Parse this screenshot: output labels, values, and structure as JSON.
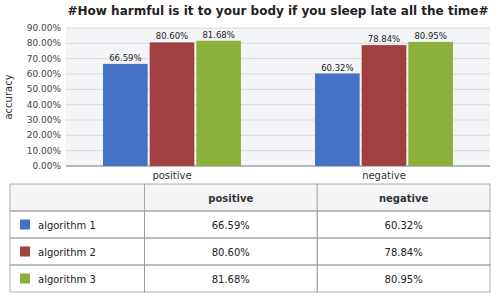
{
  "chart_data": {
    "type": "bar",
    "title": "#How harmful is it to your body if you sleep late all the time#",
    "ylabel": "accuracy",
    "categories": [
      "positive",
      "negative"
    ],
    "series": [
      {
        "name": "algorithm 1",
        "color": "#4472C4",
        "values": [
          66.59,
          60.32
        ],
        "value_labels": [
          "66.59%",
          "60.32%"
        ]
      },
      {
        "name": "algorithm 2",
        "color": "#A04040",
        "values": [
          80.6,
          78.84
        ],
        "value_labels": [
          "80.60%",
          "78.84%"
        ]
      },
      {
        "name": "algorithm 3",
        "color": "#8DAF3B",
        "values": [
          81.68,
          80.95
        ],
        "value_labels": [
          "81.68%",
          "80.95%"
        ]
      }
    ],
    "ylim": [
      0,
      90
    ],
    "yticks": [
      {
        "value": 0,
        "label": "0.00%"
      },
      {
        "value": 10,
        "label": "10.00%"
      },
      {
        "value": 20,
        "label": "20.00%"
      },
      {
        "value": 30,
        "label": "30.00%"
      },
      {
        "value": 40,
        "label": "40.00%"
      },
      {
        "value": 50,
        "label": "50.00%"
      },
      {
        "value": 60,
        "label": "60.00%"
      },
      {
        "value": 70,
        "label": "70.00%"
      },
      {
        "value": 80,
        "label": "80.00%"
      },
      {
        "value": 90,
        "label": "90.00%"
      }
    ],
    "grid": true,
    "data_labels": true,
    "legend": "bottom"
  }
}
